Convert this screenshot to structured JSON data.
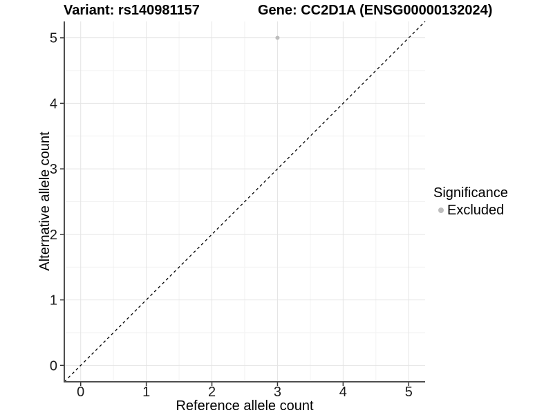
{
  "chart_data": {
    "type": "scatter",
    "title_left": "Variant: rs140981157",
    "title_right": "Gene: CC2D1A (ENSG00000132024)",
    "xlabel": "Reference allele count",
    "ylabel": "Alternative allele count",
    "xlim": [
      -0.25,
      5.25
    ],
    "ylim": [
      -0.25,
      5.25
    ],
    "xticks": [
      0,
      1,
      2,
      3,
      4,
      5
    ],
    "yticks": [
      0,
      1,
      2,
      3,
      4,
      5
    ],
    "xticks_minor": [
      0.5,
      1.5,
      2.5,
      3.5,
      4.5
    ],
    "yticks_minor": [
      0.5,
      1.5,
      2.5,
      3.5,
      4.5
    ],
    "grid": "on",
    "legend_position": "right",
    "identity_line": {
      "style": "dashed",
      "color": "#000000",
      "from": [
        -0.25,
        -0.25
      ],
      "to": [
        5.25,
        5.25
      ]
    },
    "series": [
      {
        "name": "Excluded",
        "color": "#bdbdbd",
        "marker": "circle",
        "points": [
          {
            "x": 3,
            "y": 5
          }
        ]
      }
    ],
    "legend": {
      "title": "Significance",
      "entries": [
        {
          "label": "Excluded",
          "color": "#bdbdbd"
        }
      ]
    },
    "colors": {
      "grid_major": "#e4e4e4",
      "grid_minor": "#f2f2f2",
      "axis_line": "#4d4d4d",
      "tick_mark": "#333333",
      "tick_text": "#1a1a1a",
      "point": "#bdbdbd"
    }
  }
}
